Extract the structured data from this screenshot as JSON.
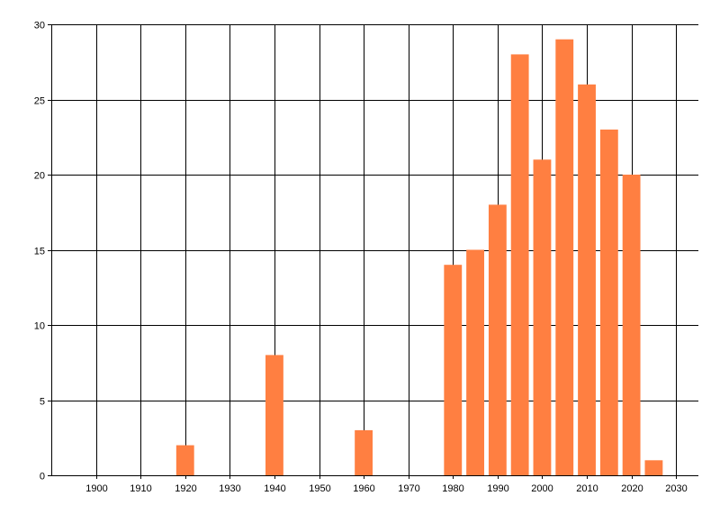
{
  "chart_data": {
    "type": "bar",
    "title": "",
    "xlabel": "",
    "ylabel": "",
    "x": [
      1920,
      1940,
      1960,
      1980,
      1985,
      1990,
      1995,
      2000,
      2005,
      2010,
      2015,
      2020,
      2025
    ],
    "values": [
      2,
      8,
      3,
      14,
      15,
      18,
      28,
      21,
      29,
      26,
      23,
      20,
      1
    ],
    "xlim": [
      1890,
      2035
    ],
    "ylim": [
      0,
      30
    ],
    "x_ticks": [
      "1900",
      "1910",
      "1920",
      "1930",
      "1940",
      "1950",
      "1960",
      "1970",
      "1980",
      "1990",
      "2000",
      "2010",
      "2020",
      "2030"
    ],
    "y_ticks": [
      "0",
      "5",
      "10",
      "15",
      "20",
      "25",
      "30"
    ],
    "bar_width_years": 4,
    "grid": true,
    "legend": "none",
    "colors": {
      "bar": "#ff7f41",
      "grid": "#000000",
      "background": "#ffffff"
    }
  }
}
